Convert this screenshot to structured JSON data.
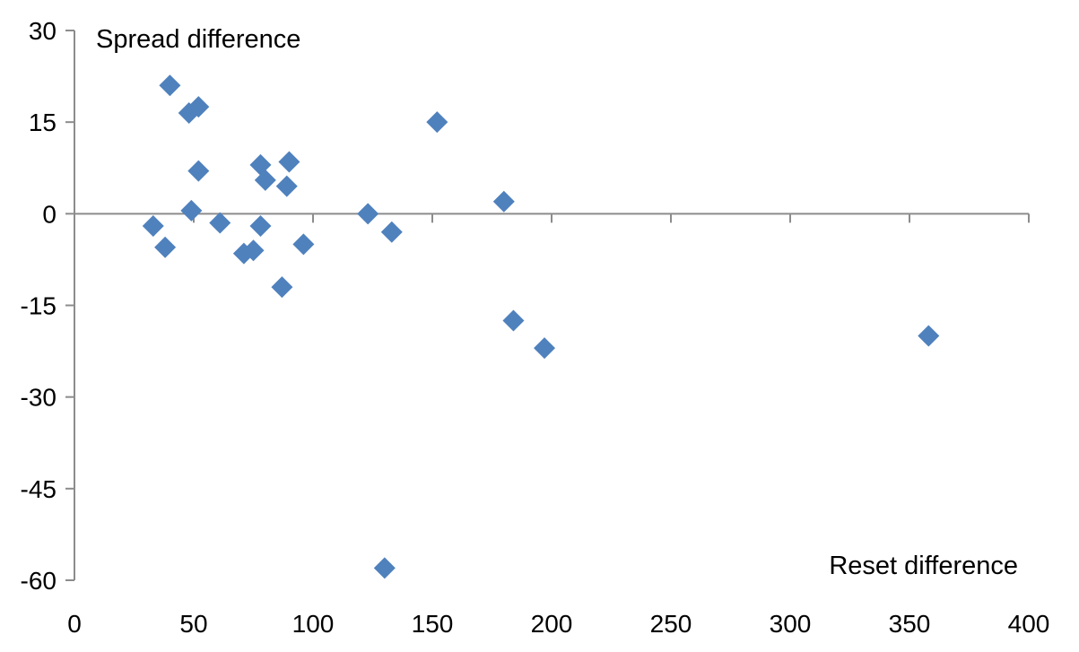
{
  "chart_data": {
    "type": "scatter",
    "title": "",
    "xlabel": "Reset difference",
    "ylabel": "Spread difference",
    "xlim": [
      0,
      400
    ],
    "ylim": [
      -60,
      30
    ],
    "x_ticks": [
      0,
      50,
      100,
      150,
      200,
      250,
      300,
      350,
      400
    ],
    "y_ticks": [
      30,
      15,
      0,
      -15,
      -30,
      -45,
      -60
    ],
    "grid": false,
    "legend": "none",
    "marker": "diamond",
    "colors": {
      "marker": "#4f81bd",
      "axis": "#8c8c8c"
    },
    "series": [
      {
        "points": [
          {
            "x": 33,
            "y": -2
          },
          {
            "x": 38,
            "y": -5.5
          },
          {
            "x": 40,
            "y": 21
          },
          {
            "x": 48,
            "y": 16.5
          },
          {
            "x": 49,
            "y": 0.5
          },
          {
            "x": 52,
            "y": 17.5
          },
          {
            "x": 52,
            "y": 7
          },
          {
            "x": 61,
            "y": -1.5
          },
          {
            "x": 71,
            "y": -6.5
          },
          {
            "x": 75,
            "y": -6
          },
          {
            "x": 78,
            "y": -2
          },
          {
            "x": 78,
            "y": 8
          },
          {
            "x": 80,
            "y": 5.5
          },
          {
            "x": 87,
            "y": -12
          },
          {
            "x": 89,
            "y": 4.5
          },
          {
            "x": 90,
            "y": 8.5
          },
          {
            "x": 96,
            "y": -5
          },
          {
            "x": 123,
            "y": 0
          },
          {
            "x": 130,
            "y": -58
          },
          {
            "x": 133,
            "y": -3
          },
          {
            "x": 152,
            "y": 15
          },
          {
            "x": 180,
            "y": 2
          },
          {
            "x": 184,
            "y": -17.5
          },
          {
            "x": 197,
            "y": -22
          },
          {
            "x": 358,
            "y": -20
          }
        ]
      }
    ]
  }
}
